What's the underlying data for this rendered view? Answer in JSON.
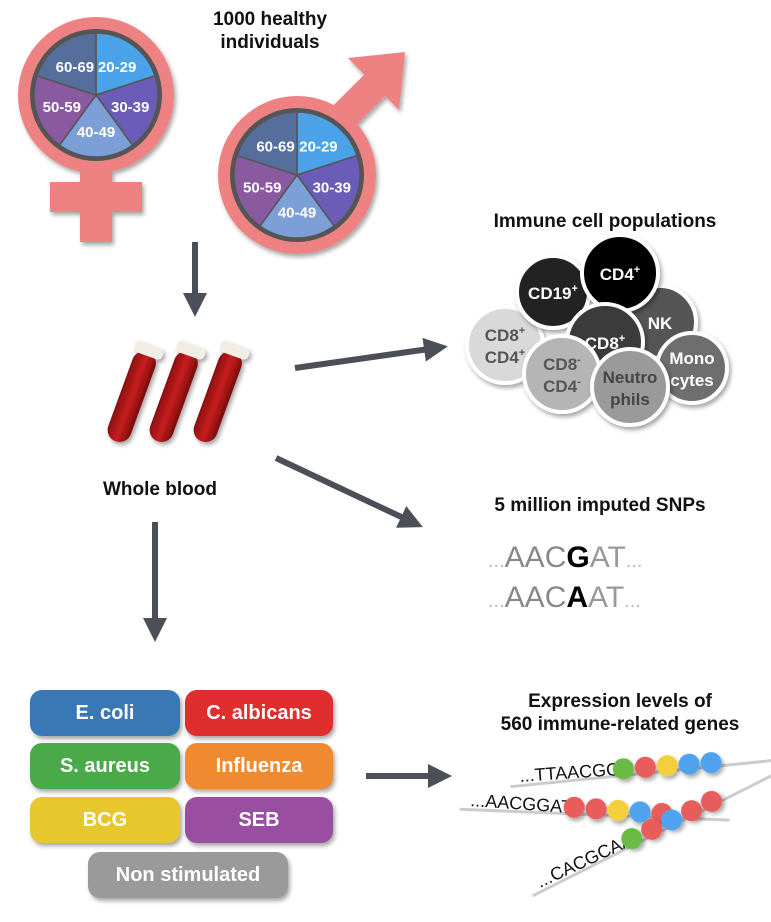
{
  "cohort": {
    "title_line1": "1000 healthy",
    "title_line2": "individuals",
    "age_groups": [
      "20-29",
      "30-39",
      "40-49",
      "50-59",
      "60-69"
    ],
    "age_colors": [
      "#4aa3e8",
      "#6b5cb8",
      "#7b9fd6",
      "#8a5aa0",
      "#566e9c"
    ],
    "symbol_color": "#ee8282"
  },
  "blood": {
    "label": "Whole blood"
  },
  "immune": {
    "title": "Immune cell populations",
    "cells": [
      {
        "label1": "CD8",
        "sup1": "+",
        "label2": "CD4",
        "sup2": "+",
        "fill": "#d9d9d9",
        "text": "#555"
      },
      {
        "label1": "CD19",
        "sup1": "+",
        "fill": "#222",
        "text": "#fff"
      },
      {
        "label1": "NK",
        "fill": "#555",
        "text": "#fff"
      },
      {
        "label1": "CD4",
        "sup1": "+",
        "fill": "#000",
        "text": "#fff"
      },
      {
        "label1": "CD8",
        "sup1": "+",
        "fill": "#3a3a3a",
        "text": "#fff"
      },
      {
        "label1": "Mono",
        "label2": "cytes",
        "fill": "#6e6e6e",
        "text": "#fff"
      },
      {
        "label1": "CD8",
        "sup1": "-",
        "label2": "CD4",
        "sup2": "-",
        "fill": "#b5b5b5",
        "text": "#555"
      },
      {
        "label1": "Neutro",
        "label2": "phils",
        "fill": "#9a9a9a",
        "text": "#444"
      }
    ]
  },
  "snps": {
    "title": "5 million imputed SNPs",
    "seq1": {
      "pre": "AAC",
      "snp": "G",
      "post": "AT"
    },
    "seq2": {
      "pre": "AAC",
      "snp": "A",
      "post": "AT"
    },
    "ellipsis": "..."
  },
  "stimuli": {
    "items": [
      {
        "label": "E. coli",
        "color": "#3a78b5"
      },
      {
        "label": "C. albicans",
        "color": "#e02d2d"
      },
      {
        "label": "S. aureus",
        "color": "#4aaa4a"
      },
      {
        "label": "Influenza",
        "color": "#f08a30"
      },
      {
        "label": "BCG",
        "color": "#e8c62e"
      },
      {
        "label": "SEB",
        "color": "#9a4ea2"
      },
      {
        "label": "Non stimulated",
        "color": "#9a9a9a"
      }
    ]
  },
  "expression": {
    "title_line1": "Expression levels of",
    "title_line2": "560 immune-related genes",
    "strands": [
      {
        "seq": "...TTAACGG",
        "beads": [
          "#6abb45",
          "#e85c5c",
          "#f2cf3a",
          "#4fa3ee",
          "#4fa3ee"
        ]
      },
      {
        "seq": "...AACGGAT",
        "beads": [
          "#e85c5c",
          "#e85c5c",
          "#f2cf3a",
          "#4fa3ee",
          "#e85c5c"
        ]
      },
      {
        "seq": "...CACGCAA",
        "beads": [
          "#6abb45",
          "#e85c5c",
          "#4fa3ee",
          "#e85c5c",
          "#e85c5c"
        ]
      }
    ]
  },
  "arrow_color": "#4b5058"
}
